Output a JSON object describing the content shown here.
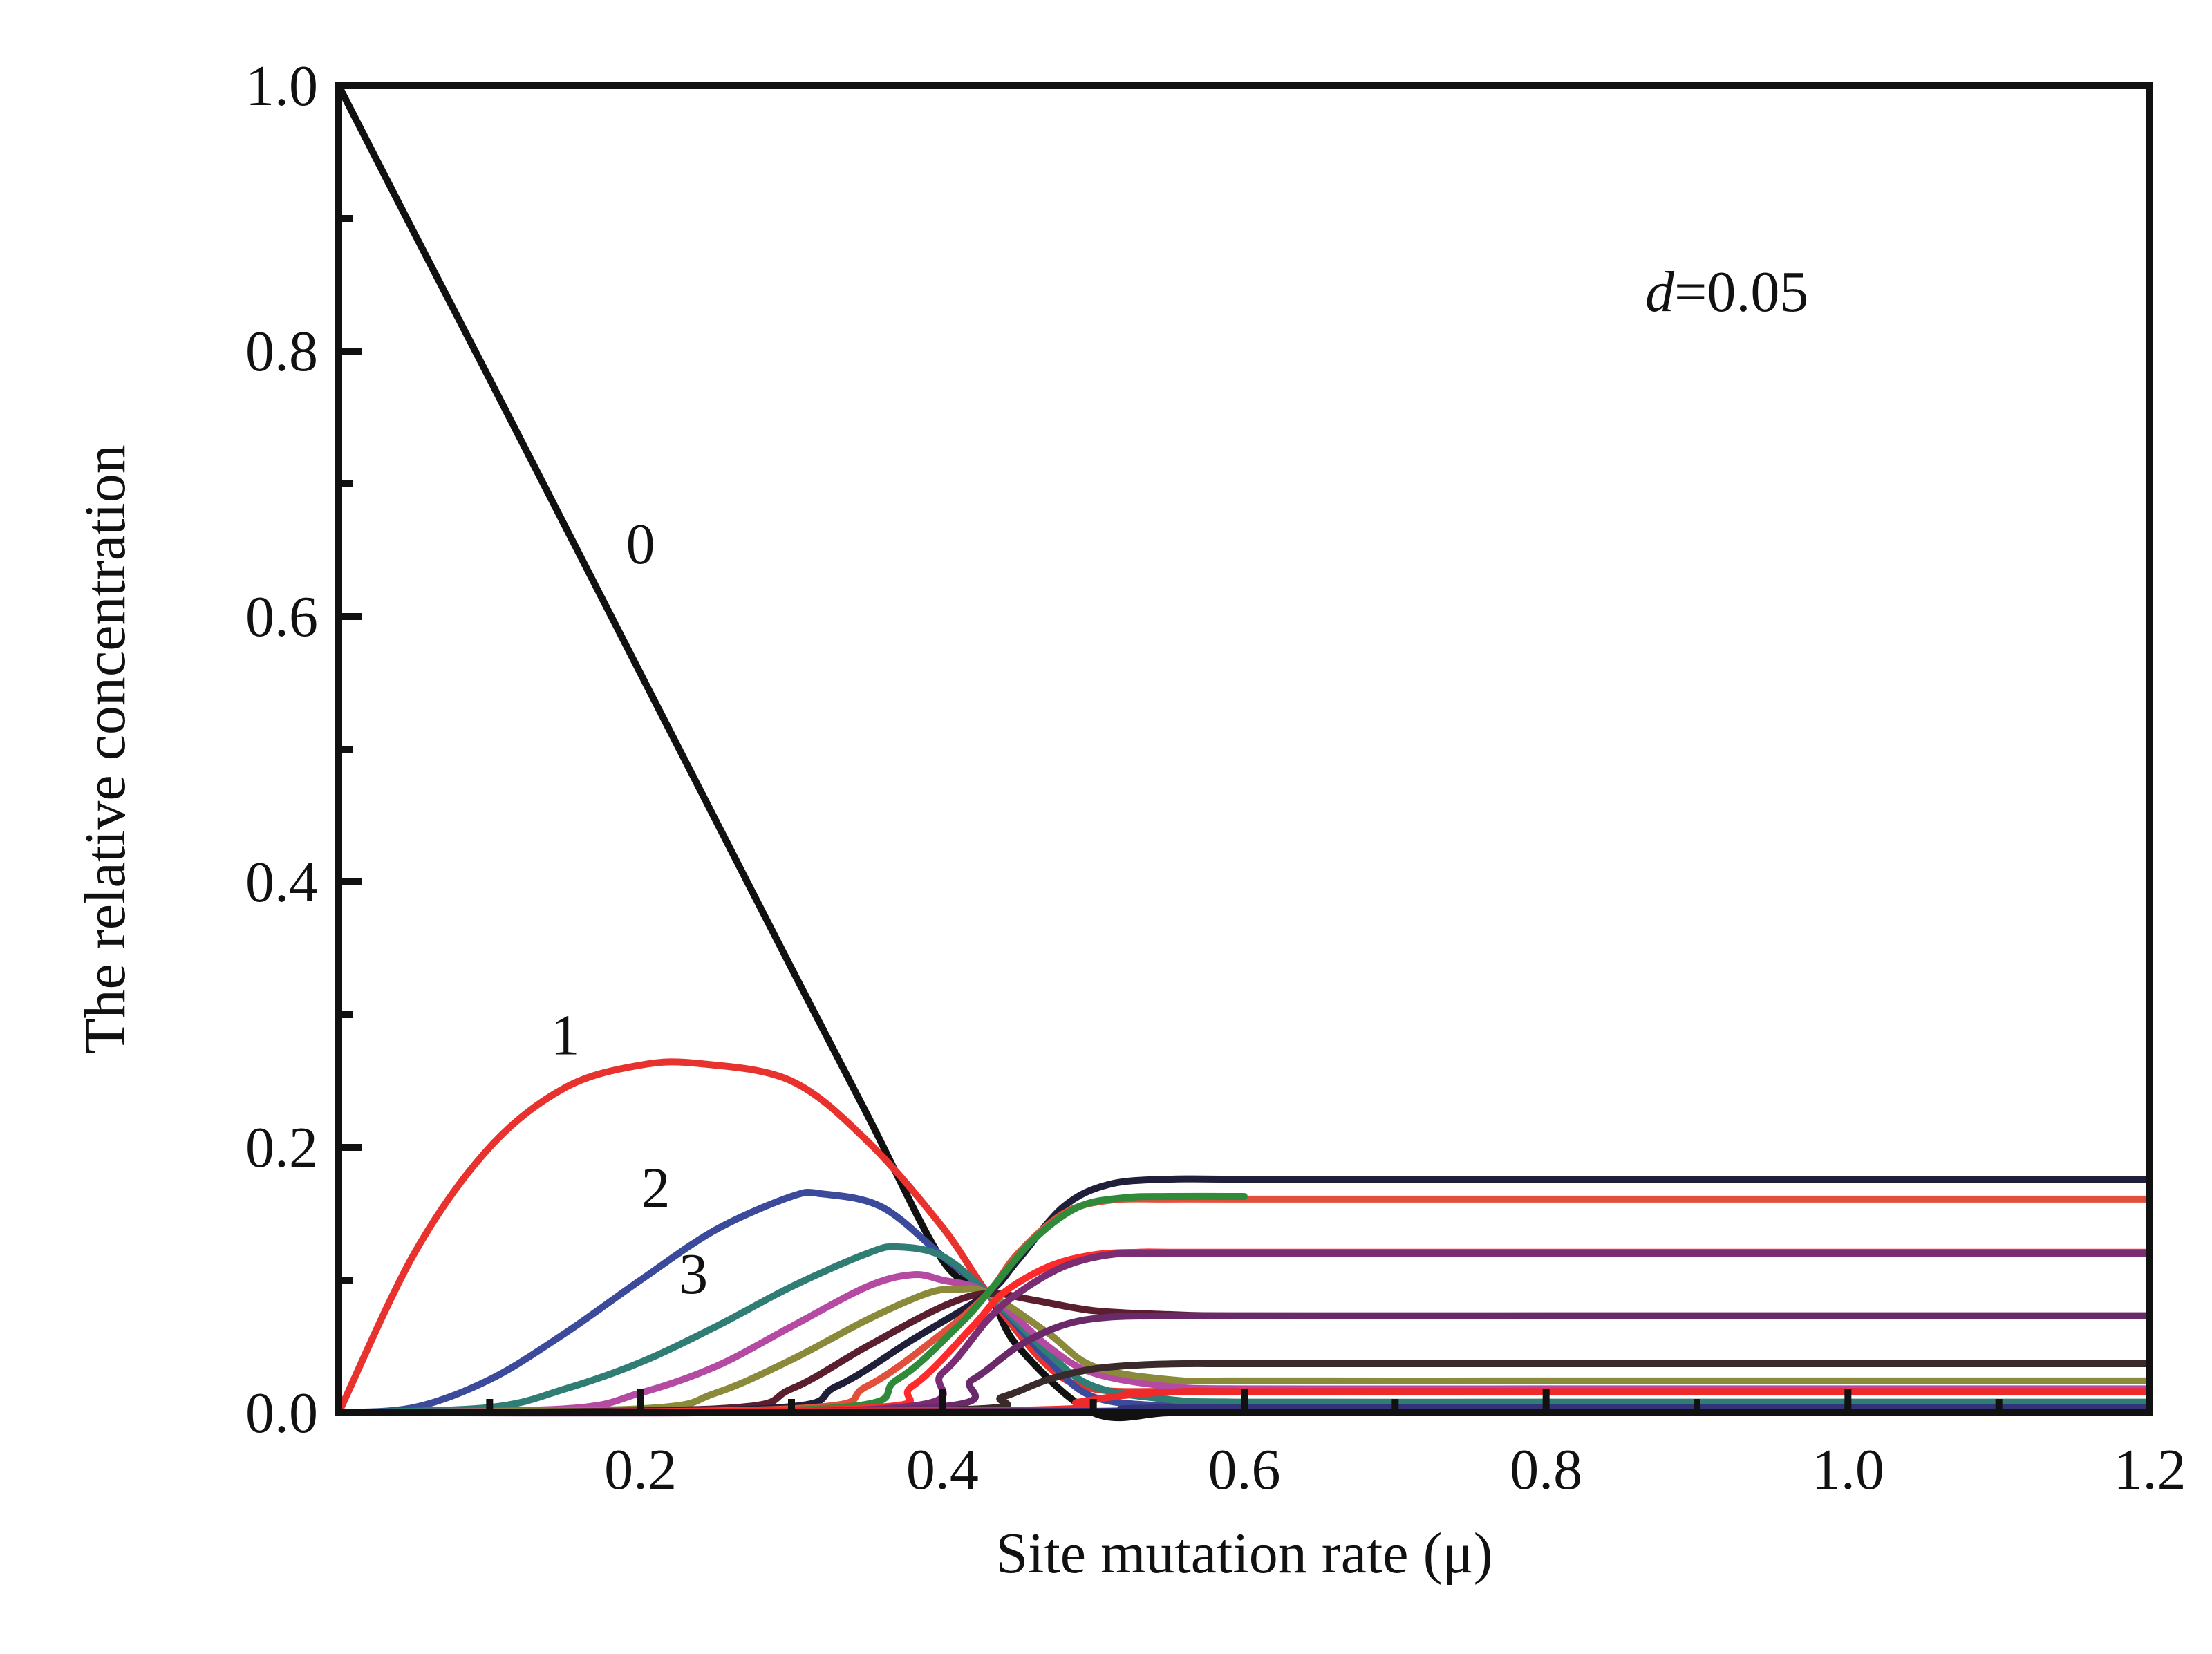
{
  "chart_data": {
    "type": "line",
    "xlabel": "Site mutation rate (μ)",
    "ylabel": "The relative concentration",
    "xlim": [
      0.0,
      1.2
    ],
    "ylim": [
      0.0,
      1.0
    ],
    "xticks": [
      0.2,
      0.4,
      0.6,
      0.8,
      1.0,
      1.2
    ],
    "xtick_labels": [
      "0.2",
      "0.4",
      "0.6",
      "0.8",
      "1.0",
      "1.2"
    ],
    "yticks": [
      0.0,
      0.2,
      0.4,
      0.6,
      0.8,
      1.0
    ],
    "ytick_labels": [
      "0.0",
      "0.2",
      "0.4",
      "0.6",
      "0.8",
      "1.0"
    ],
    "grid": false,
    "annotation": {
      "var": "d",
      "value": "=0.05"
    },
    "curve_labels": [
      {
        "text": "0",
        "x": 0.2,
        "y": 0.64
      },
      {
        "text": "1",
        "x": 0.15,
        "y": 0.27
      },
      {
        "text": "2",
        "x": 0.21,
        "y": 0.155
      },
      {
        "text": "3",
        "x": 0.235,
        "y": 0.09
      }
    ],
    "series": [
      {
        "color": "#111111",
        "x": [
          0.0,
          0.05,
          0.1,
          0.15,
          0.2,
          0.25,
          0.3,
          0.35,
          0.4,
          0.43,
          0.45,
          0.5,
          0.55,
          0.6,
          0.8,
          1.0,
          1.2
        ],
        "values": [
          1.0,
          0.889,
          0.779,
          0.668,
          0.557,
          0.446,
          0.335,
          0.225,
          0.115,
          0.09,
          0.05,
          0.0,
          0.0,
          0.0,
          0.0,
          0.0,
          0.0
        ]
      },
      {
        "color": "#e8322e",
        "x": [
          0.0,
          0.05,
          0.1,
          0.15,
          0.2,
          0.24,
          0.3,
          0.35,
          0.4,
          0.43,
          0.47,
          0.5,
          0.55,
          0.6,
          0.8,
          1.0,
          1.2
        ],
        "values": [
          0.0,
          0.12,
          0.2,
          0.245,
          0.262,
          0.263,
          0.25,
          0.205,
          0.14,
          0.09,
          0.035,
          0.018,
          0.016,
          0.016,
          0.016,
          0.016,
          0.016
        ]
      },
      {
        "color": "#3b4a9a",
        "x": [
          0.0,
          0.05,
          0.1,
          0.15,
          0.2,
          0.25,
          0.3,
          0.32,
          0.36,
          0.4,
          0.43,
          0.47,
          0.5,
          0.55,
          0.6,
          0.8,
          1.0,
          1.2
        ],
        "values": [
          0.0,
          0.004,
          0.025,
          0.06,
          0.1,
          0.138,
          0.163,
          0.165,
          0.155,
          0.118,
          0.09,
          0.04,
          0.012,
          0.005,
          0.004,
          0.004,
          0.004,
          0.004
        ]
      },
      {
        "color": "#2f7d74",
        "x": [
          0.0,
          0.1,
          0.15,
          0.2,
          0.25,
          0.3,
          0.35,
          0.37,
          0.4,
          0.43,
          0.47,
          0.5,
          0.55,
          0.6,
          0.8,
          1.0,
          1.2
        ],
        "values": [
          0.0,
          0.004,
          0.018,
          0.038,
          0.065,
          0.095,
          0.12,
          0.125,
          0.118,
          0.09,
          0.045,
          0.02,
          0.01,
          0.008,
          0.008,
          0.008,
          0.008
        ]
      },
      {
        "color": "#b54aa3",
        "x": [
          0.0,
          0.15,
          0.2,
          0.25,
          0.3,
          0.35,
          0.38,
          0.4,
          0.43,
          0.47,
          0.5,
          0.55,
          0.6,
          0.8,
          1.0,
          1.2
        ],
        "values": [
          0.0,
          0.003,
          0.015,
          0.035,
          0.065,
          0.095,
          0.104,
          0.1,
          0.09,
          0.05,
          0.03,
          0.02,
          0.018,
          0.018,
          0.018,
          0.018
        ]
      },
      {
        "color": "#8a8a3a",
        "x": [
          0.0,
          0.2,
          0.25,
          0.3,
          0.35,
          0.39,
          0.41,
          0.43,
          0.47,
          0.5,
          0.55,
          0.6,
          0.8,
          1.0,
          1.2
        ],
        "values": [
          0.0,
          0.003,
          0.015,
          0.04,
          0.07,
          0.09,
          0.093,
          0.09,
          0.06,
          0.035,
          0.025,
          0.024,
          0.024,
          0.024,
          0.024
        ]
      },
      {
        "color": "#5a1e2e",
        "x": [
          0.0,
          0.25,
          0.3,
          0.35,
          0.4,
          0.43,
          0.46,
          0.5,
          0.55,
          0.6,
          0.8,
          1.0,
          1.2
        ],
        "values": [
          0.0,
          0.003,
          0.018,
          0.05,
          0.08,
          0.09,
          0.085,
          0.077,
          0.074,
          0.073,
          0.073,
          0.073,
          0.073
        ]
      },
      {
        "color": "#1f1f3a",
        "x": [
          0.0,
          0.28,
          0.33,
          0.38,
          0.43,
          0.45,
          0.48,
          0.51,
          0.55,
          0.6,
          0.8,
          1.0,
          1.2
        ],
        "values": [
          0.0,
          0.003,
          0.02,
          0.055,
          0.09,
          0.115,
          0.155,
          0.172,
          0.176,
          0.176,
          0.176,
          0.176,
          0.176
        ]
      },
      {
        "color": "#e0503a",
        "x": [
          0.0,
          0.3,
          0.35,
          0.4,
          0.43,
          0.45,
          0.48,
          0.51,
          0.55,
          0.6,
          0.8,
          1.0,
          1.2
        ],
        "values": [
          0.0,
          0.003,
          0.02,
          0.06,
          0.09,
          0.12,
          0.15,
          0.16,
          0.161,
          0.161,
          0.161,
          0.161,
          0.161
        ]
      },
      {
        "color": "#2f8a3a",
        "x": [
          0.0,
          0.32,
          0.37,
          0.41,
          0.43,
          0.46,
          0.49,
          0.52,
          0.55,
          0.6
        ],
        "values": [
          0.0,
          0.003,
          0.025,
          0.065,
          0.09,
          0.13,
          0.155,
          0.162,
          0.163,
          0.163
        ]
      },
      {
        "color": "#ff2a2a",
        "x": [
          0.0,
          0.34,
          0.38,
          0.42,
          0.44,
          0.47,
          0.5,
          0.53,
          0.55,
          0.6,
          0.8,
          1.0,
          1.2
        ],
        "values": [
          0.0,
          0.003,
          0.02,
          0.065,
          0.09,
          0.11,
          0.119,
          0.121,
          0.121,
          0.121,
          0.121,
          0.121,
          0.121
        ]
      },
      {
        "color": "#7a2d73",
        "x": [
          0.0,
          0.36,
          0.4,
          0.43,
          0.45,
          0.48,
          0.51,
          0.54,
          0.6,
          0.8,
          1.0,
          1.2
        ],
        "values": [
          0.0,
          0.003,
          0.03,
          0.07,
          0.09,
          0.11,
          0.119,
          0.12,
          0.12,
          0.12,
          0.12,
          0.12
        ]
      },
      {
        "color": "#6a2a6a",
        "x": [
          0.0,
          0.38,
          0.42,
          0.45,
          0.48,
          0.51,
          0.55,
          0.6,
          0.8,
          1.0,
          1.2
        ],
        "values": [
          0.0,
          0.003,
          0.025,
          0.05,
          0.066,
          0.072,
          0.073,
          0.073,
          0.073,
          0.073,
          0.073
        ]
      },
      {
        "color": "#3a2a2a",
        "x": [
          0.0,
          0.4,
          0.44,
          0.47,
          0.5,
          0.53,
          0.56,
          0.6,
          0.8,
          1.0,
          1.2
        ],
        "values": [
          0.0,
          0.002,
          0.012,
          0.025,
          0.033,
          0.036,
          0.037,
          0.037,
          0.037,
          0.037,
          0.037
        ]
      },
      {
        "color": "#ee2a2a",
        "x": [
          0.0,
          0.45,
          0.49,
          0.52,
          0.56,
          0.6,
          0.8,
          1.0,
          1.2
        ],
        "values": [
          0.0,
          0.002,
          0.008,
          0.013,
          0.016,
          0.016,
          0.016,
          0.016,
          0.016
        ]
      },
      {
        "color": "#33337a",
        "x": [
          0.0,
          0.48,
          0.52,
          0.56,
          0.6,
          0.8,
          1.0,
          1.2
        ],
        "values": [
          0.0,
          0.001,
          0.003,
          0.004,
          0.004,
          0.004,
          0.004,
          0.004
        ]
      }
    ]
  }
}
